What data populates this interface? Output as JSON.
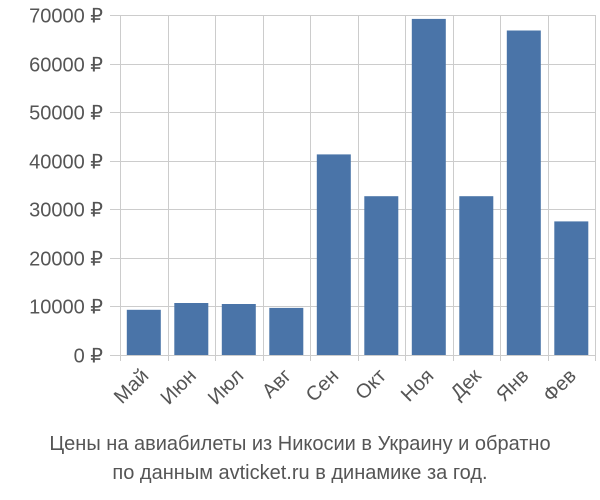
{
  "chart_data": {
    "type": "bar",
    "categories": [
      "Май",
      "Июн",
      "Июл",
      "Авг",
      "Сен",
      "Окт",
      "Ноя",
      "Дек",
      "Янв",
      "Фев"
    ],
    "values": [
      9300,
      10700,
      10500,
      9700,
      41300,
      32700,
      69200,
      32700,
      66800,
      27500
    ],
    "ylim": [
      0,
      70000
    ],
    "yticks": [
      0,
      10000,
      20000,
      30000,
      40000,
      50000,
      60000,
      70000
    ],
    "ytick_labels": [
      "0 ₽",
      "10000 ₽",
      "20000 ₽",
      "30000 ₽",
      "40000 ₽",
      "50000 ₽",
      "60000 ₽",
      "70000 ₽"
    ],
    "grid": true,
    "bar_color": "#4a74a8"
  },
  "caption": {
    "line1": "Цены на авиабилеты из Никосии в Украину и обратно",
    "line2": "по данным avticket.ru в динамике за год."
  }
}
